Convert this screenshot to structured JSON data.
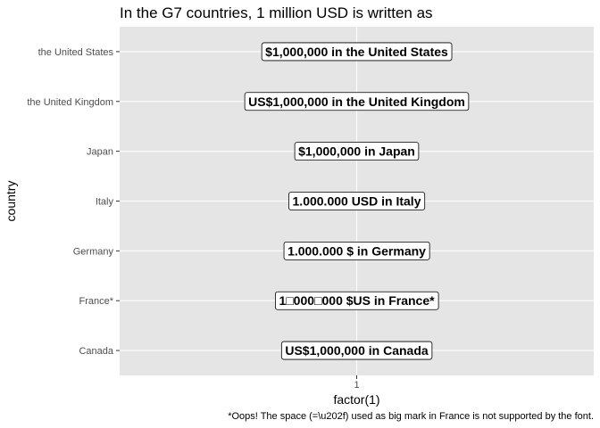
{
  "chart_data": {
    "type": "table",
    "title": "In the G7 countries, 1 million USD is written as",
    "xlabel": "factor(1)",
    "ylabel": "country",
    "x_tick_labels": [
      "1"
    ],
    "categories": [
      "the United States",
      "the United Kingdom",
      "Japan",
      "Italy",
      "Germany",
      "France*",
      "Canada"
    ],
    "labels": [
      "$1,000,000 in the United States",
      "US$1,000,000 in the United Kingdom",
      "$1,000,000 in Japan",
      "1.000.000 USD in Italy",
      "1.000.000 $ in Germany",
      "1□000□000 $US in France*",
      "US$1,000,000 in Canada"
    ],
    "caption": "*Oops! The space (=\\u202f) used as big mark in France is not supported by the font.",
    "panel_background": "#e5e5e5",
    "gridline_color": "#ffffff",
    "label_fill": "#ffffff",
    "grid": true,
    "legend": "none"
  }
}
